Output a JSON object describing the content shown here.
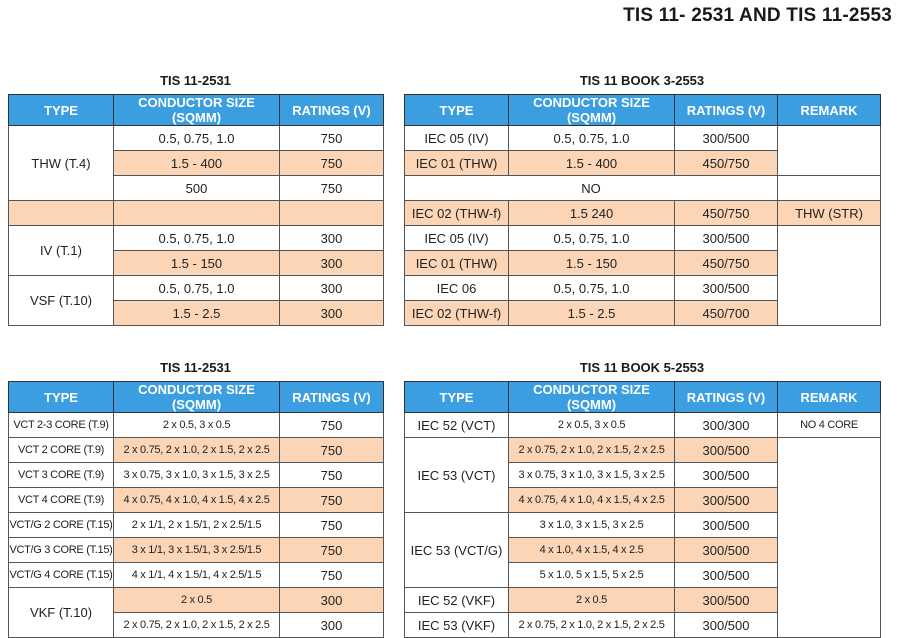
{
  "page_title": "TIS 11- 2531 AND TIS 11-2553",
  "tables": {
    "top_left": {
      "title": "TIS 11-2531",
      "headers": [
        "TYPE",
        "CONDUCTOR SIZE (SQMM)",
        "RATINGS (V)"
      ],
      "types": [
        "THW (T.4)",
        "IV (T.1)",
        "VSF (T.10)"
      ],
      "rows": [
        {
          "cond": "0.5, 0.75, 1.0",
          "rating": "750"
        },
        {
          "cond": "1.5 - 400",
          "rating": "750"
        },
        {
          "cond": "500",
          "rating": "750"
        },
        {
          "cond": "",
          "rating": ""
        },
        {
          "cond": "0.5, 0.75, 1.0",
          "rating": "300"
        },
        {
          "cond": "1.5 - 150",
          "rating": "300"
        },
        {
          "cond": "0.5, 0.75, 1.0",
          "rating": "300"
        },
        {
          "cond": "1.5 - 2.5",
          "rating": "300"
        }
      ]
    },
    "top_right": {
      "title": "TIS 11 BOOK 3-2553",
      "headers": [
        "TYPE",
        "CONDUCTOR SIZE (SQMM)",
        "RATINGS (V)",
        "REMARK"
      ],
      "rows": [
        {
          "type": "IEC 05 (IV)",
          "cond": "0.5, 0.75, 1.0",
          "rating": "300/500"
        },
        {
          "type": "IEC 01 (THW)",
          "cond": "1.5 - 400",
          "rating": "450/750"
        },
        {
          "no": "NO"
        },
        {
          "type": "IEC 02 (THW-f)",
          "cond": "1.5 240",
          "rating": "450/750",
          "remark": "THW (STR)"
        },
        {
          "type": "IEC 05 (IV)",
          "cond": "0.5, 0.75, 1.0",
          "rating": "300/500"
        },
        {
          "type": "IEC 01 (THW)",
          "cond": "1.5 - 150",
          "rating": "450/750"
        },
        {
          "type": "IEC 06",
          "cond": "0.5, 0.75, 1.0",
          "rating": "300/500"
        },
        {
          "type": "IEC 02 (THW-f)",
          "cond": "1.5 - 2.5",
          "rating": "450/700"
        }
      ]
    },
    "bottom_left": {
      "title": "TIS 11-2531",
      "headers": [
        "TYPE",
        "CONDUCTOR SIZE (SQMM)",
        "RATINGS (V)"
      ],
      "rows": [
        {
          "type": "VCT 2-3 CORE (T.9)",
          "cond": "2 x 0.5, 3 x 0.5",
          "rating": "750"
        },
        {
          "type": "VCT 2 CORE (T.9)",
          "cond": "2 x 0.75, 2 x 1.0, 2 x 1.5, 2 x 2.5",
          "rating": "750"
        },
        {
          "type": "VCT 3 CORE (T.9)",
          "cond": "3 x 0.75, 3 x 1.0, 3 x 1.5, 3 x 2.5",
          "rating": "750"
        },
        {
          "type": "VCT 4 CORE (T.9)",
          "cond": "4 x 0.75, 4 x 1.0, 4 x 1.5, 4 x 2.5",
          "rating": "750"
        },
        {
          "type": "VCT/G 2 CORE (T.15)",
          "cond": "2 x 1/1, 2 x 1.5/1, 2 x 2.5/1.5",
          "rating": "750"
        },
        {
          "type": "VCT/G 3 CORE (T.15)",
          "cond": "3 x 1/1, 3 x 1.5/1, 3 x 2.5/1.5",
          "rating": "750"
        },
        {
          "type": "VCT/G 4 CORE (T.15)",
          "cond": "4 x 1/1, 4 x 1.5/1, 4 x 2.5/1.5",
          "rating": "750"
        },
        {
          "type": "VKF (T.10)",
          "cond": "2 x 0.5",
          "rating": "300"
        },
        {
          "cond": "2 x 0.75, 2 x 1.0, 2 x 1.5, 2 x 2.5",
          "rating": "300"
        }
      ]
    },
    "bottom_right": {
      "title": "TIS 11 BOOK 5-2553",
      "headers": [
        "TYPE",
        "CONDUCTOR SIZE (SQMM)",
        "RATINGS (V)",
        "REMARK"
      ],
      "types": [
        "IEC 52 (VCT)",
        "IEC 53 (VCT)",
        "IEC 53 (VCT/G)",
        "IEC 52 (VKF)",
        "IEC 53 (VKF)"
      ],
      "remark": "NO 4 CORE",
      "rows": [
        {
          "cond": "2 x 0.5, 3 x 0.5",
          "rating": "300/300"
        },
        {
          "cond": "2 x 0.75, 2 x 1.0, 2 x 1.5, 2 x 2.5",
          "rating": "300/500"
        },
        {
          "cond": "3 x 0.75, 3 x 1.0, 3 x 1.5, 3 x 2.5",
          "rating": "300/500"
        },
        {
          "cond": "4 x 0.75, 4 x 1.0, 4 x 1.5, 4 x 2.5",
          "rating": "300/500"
        },
        {
          "cond": "3 x 1.0, 3 x 1.5, 3 x 2.5",
          "rating": "300/500"
        },
        {
          "cond": "4 x 1.0, 4 x 1.5, 4 x 2.5",
          "rating": "300/500"
        },
        {
          "cond": "5 x 1.0, 5 x 1.5, 5 x 2.5",
          "rating": "300/500"
        },
        {
          "cond": "2 x 0.5",
          "rating": "300/500"
        },
        {
          "cond": "2 x 0.75, 2 x 1.0, 2 x 1.5, 2 x 2.5",
          "rating": "300/500"
        }
      ]
    }
  },
  "colors": {
    "header_bg": "#3a9ee0",
    "highlight_bg": "#fbd5b5"
  }
}
